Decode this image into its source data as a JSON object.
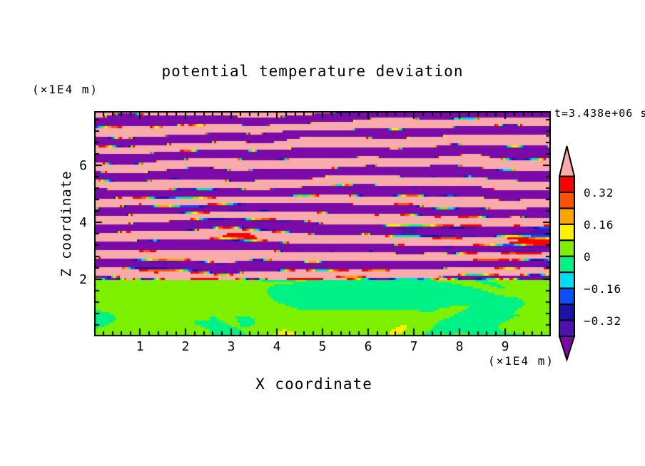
{
  "page": {
    "background": "#ffffff",
    "text_color": "#000000"
  },
  "title": "potential temperature deviation",
  "header": {
    "z_axis_unit": "(×1E4 m)",
    "time_stamp": "t=3.438e+06 s"
  },
  "axes": {
    "x": {
      "label": "X coordinate",
      "unit": "(×1E4 m)",
      "tick_labels": [
        "1",
        "2",
        "3",
        "4",
        "5",
        "6",
        "7",
        "8",
        "9"
      ]
    },
    "z": {
      "label": "Z coordinate",
      "tick_labels": [
        "2",
        "4",
        "6"
      ]
    }
  },
  "chart_data": {
    "type": "heatmap",
    "title": "potential temperature deviation",
    "xlabel": "X coordinate",
    "ylabel": "Z coordinate",
    "x_unit": "(×1E4 m)",
    "z_unit": "(×1E4 m)",
    "time_annotation": "t=3.438e+06 s",
    "x_range": [
      0,
      10
    ],
    "z_range": [
      0,
      7.9
    ],
    "x_major_ticks": [
      1,
      2,
      3,
      4,
      5,
      6,
      7,
      8,
      9
    ],
    "x_minor_step": 0.2,
    "z_major_ticks": [
      2,
      4,
      6
    ],
    "z_minor_step": 0.4,
    "grid": false,
    "colorbar": {
      "position": "right",
      "tick_labels": [
        "0.32",
        "0.16",
        "0",
        "−0.16",
        "−0.32"
      ],
      "tick_values": [
        0.32,
        0.16,
        0,
        -0.16,
        -0.32
      ],
      "bin_edges": [
        0.4,
        0.32,
        0.24,
        0.16,
        0.08,
        0,
        -0.08,
        -0.16,
        -0.24,
        -0.32,
        -0.4
      ],
      "bin_colors_top_to_bottom": [
        "#F80400",
        "#FF5200",
        "#FFA300",
        "#FCEF00",
        "#7DF000",
        "#00F287",
        "#00DCF5",
        "#0A50F5",
        "#1C12AA",
        "#4E12B0"
      ],
      "over_color": "#F9ABAB",
      "under_color": "#7B0BA8"
    },
    "field": {
      "description": "Wavy stably-stratified layers saturating beyond ±0.4 (pink/purple stripes with thin rainbow contour fringes) above a convective mixed layer of near-zero green values; a thin sharp interface with alternating warm/cold streaks lies near z = 2 (×1E4 m).",
      "interface_z": 2.0,
      "stripe_freq": 1.55,
      "stripe_phase": 0.84,
      "amp": 0.55,
      "mixed_amp": 0.082,
      "seed": 7
    }
  }
}
